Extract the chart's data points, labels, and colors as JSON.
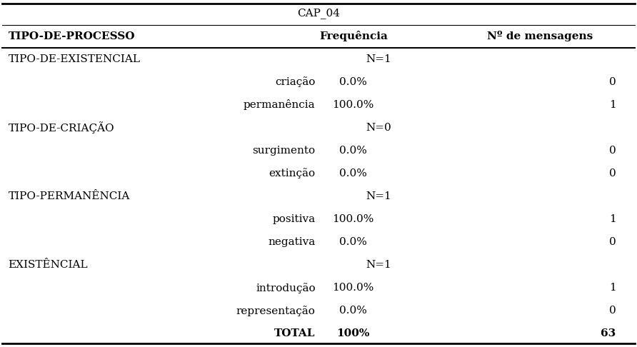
{
  "title": "CAP_04",
  "headers": [
    "TIPO-DE-PROCESSO",
    "Frequência",
    "Nº de mensagens"
  ],
  "rows": [
    {
      "label": "TIPO-DE-EXISTENCIAL",
      "indent": 0,
      "freq": "",
      "n": "N=1",
      "bold": false,
      "is_group": true
    },
    {
      "label": "criação",
      "indent": 1,
      "freq": "0.0%",
      "n": "0",
      "bold": false,
      "is_group": false
    },
    {
      "label": "permanência",
      "indent": 1,
      "freq": "100.0%",
      "n": "1",
      "bold": false,
      "is_group": false
    },
    {
      "label": "TIPO-DE-CRIAÇÃO",
      "indent": 0,
      "freq": "",
      "n": "N=0",
      "bold": false,
      "is_group": true
    },
    {
      "label": "surgimento",
      "indent": 1,
      "freq": "0.0%",
      "n": "0",
      "bold": false,
      "is_group": false
    },
    {
      "label": "extinção",
      "indent": 1,
      "freq": "0.0%",
      "n": "0",
      "bold": false,
      "is_group": false
    },
    {
      "label": "TIPO-PERMANÊNCIA",
      "indent": 0,
      "freq": "",
      "n": "N=1",
      "bold": false,
      "is_group": true
    },
    {
      "label": "positiva",
      "indent": 1,
      "freq": "100.0%",
      "n": "1",
      "bold": false,
      "is_group": false
    },
    {
      "label": "negativa",
      "indent": 1,
      "freq": "0.0%",
      "n": "0",
      "bold": false,
      "is_group": false
    },
    {
      "label": "EXISTÊNCIAL",
      "indent": 0,
      "freq": "",
      "n": "N=1",
      "bold": false,
      "is_group": true
    },
    {
      "label": "introdução",
      "indent": 1,
      "freq": "100.0%",
      "n": "1",
      "bold": false,
      "is_group": false
    },
    {
      "label": "representação",
      "indent": 1,
      "freq": "0.0%",
      "n": "0",
      "bold": false,
      "is_group": false
    },
    {
      "label": "TOTAL",
      "indent": 1,
      "freq": "100%",
      "n": "63",
      "bold": true,
      "is_group": false
    }
  ],
  "col0": 0.01,
  "col1": 0.555,
  "col2": 0.83,
  "background_color": "#ffffff",
  "text_color": "#000000",
  "font_size": 11,
  "header_font_size": 11,
  "title_font_size": 11
}
